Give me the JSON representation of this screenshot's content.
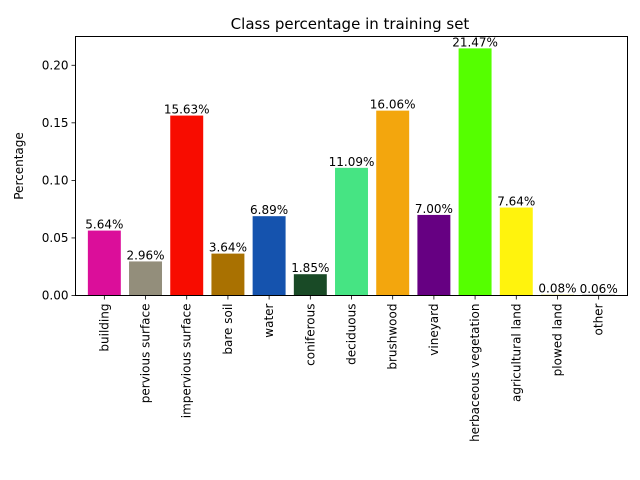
{
  "chart_data": {
    "type": "bar",
    "title": "Class percentage in training set",
    "xlabel": "",
    "ylabel": "Percentage",
    "ylim": [
      0,
      0.225
    ],
    "yticks": [
      0.0,
      0.05,
      0.1,
      0.15,
      0.2
    ],
    "ytick_labels": [
      "0.00",
      "0.05",
      "0.10",
      "0.15",
      "0.20"
    ],
    "grid": false,
    "categories": [
      "building",
      "pervious surface",
      "impervious surface",
      "bare soil",
      "water",
      "coniferous",
      "deciduous",
      "brushwood",
      "vineyard",
      "herbaceous vegetation",
      "agricultural land",
      "plowed land",
      "other"
    ],
    "values": [
      0.0564,
      0.0296,
      0.1563,
      0.0364,
      0.0689,
      0.0185,
      0.1109,
      0.1606,
      0.07,
      0.2147,
      0.0764,
      0.0008,
      0.0006
    ],
    "data_labels": [
      "5.64%",
      "2.96%",
      "15.63%",
      "3.64%",
      "6.89%",
      "1.85%",
      "11.09%",
      "16.06%",
      "7.00%",
      "21.47%",
      "7.64%",
      "0.08%",
      "0.06%"
    ],
    "colors": [
      "#db0e9a",
      "#938e7b",
      "#f80c00",
      "#a97101",
      "#1553ae",
      "#194a26",
      "#46e483",
      "#f3a60d",
      "#660082",
      "#55ff00",
      "#fff30d",
      "#e4df7c",
      "#000000"
    ]
  }
}
